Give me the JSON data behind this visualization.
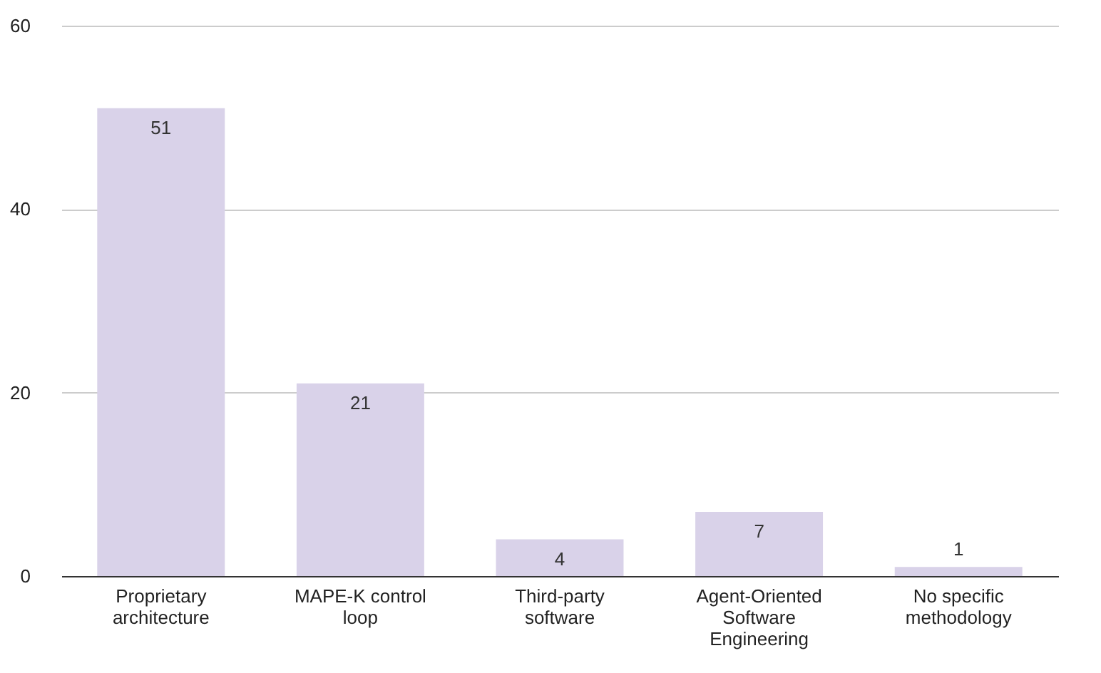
{
  "chart_data": {
    "type": "bar",
    "categories": [
      "Proprietary architecture",
      "MAPE-K control loop",
      "Third-party software",
      "Agent-Oriented Software Engineering",
      "No specific methodology"
    ],
    "values": [
      51,
      21,
      4,
      7,
      1
    ],
    "color": "#d9d2e9",
    "ylim": [
      0,
      60
    ],
    "yticks": [
      0,
      20,
      40,
      60
    ],
    "grid": "y",
    "data_labels": true
  }
}
